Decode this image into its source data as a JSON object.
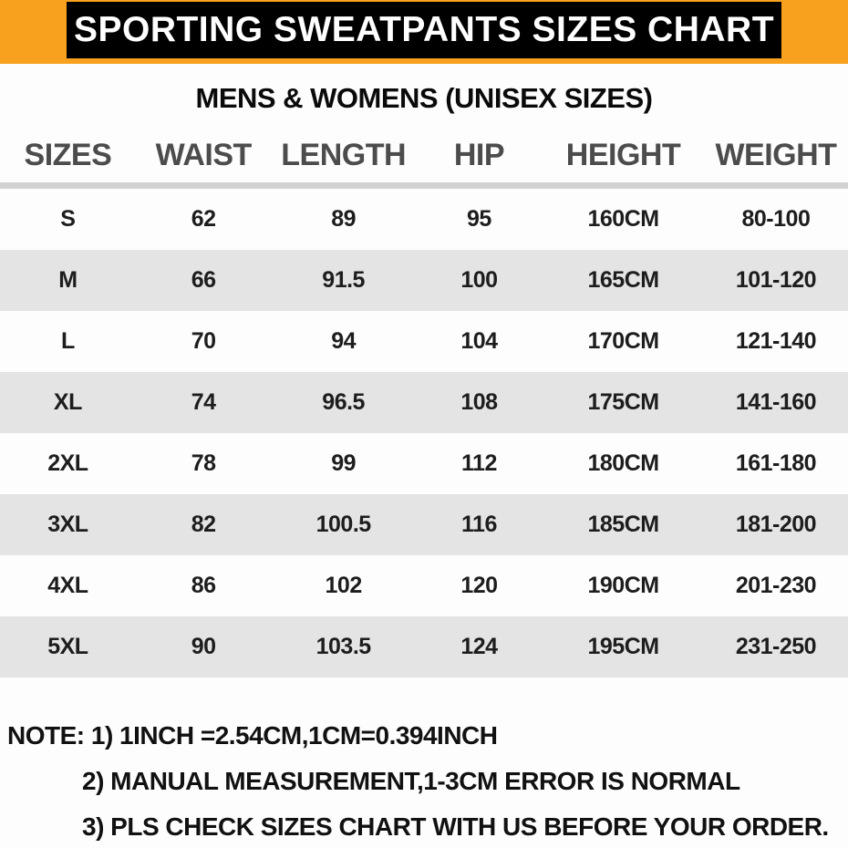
{
  "banner": {
    "title": "SPORTING SWEATPANTS SIZES CHART",
    "bg_color": "#000000",
    "text_color": "#ffffff"
  },
  "subtitle": "MENS & WOMENS (UNISEX SIZES)",
  "table": {
    "headers": [
      "SIZES",
      "WAIST",
      "LENGTH",
      "HIP",
      "HEIGHT",
      "WEIGHT"
    ],
    "rows": [
      [
        "S",
        "62",
        "89",
        "95",
        "160CM",
        "80-100"
      ],
      [
        "M",
        "66",
        "91.5",
        "100",
        "165CM",
        "101-120"
      ],
      [
        "L",
        "70",
        "94",
        "104",
        "170CM",
        "121-140"
      ],
      [
        "XL",
        "74",
        "96.5",
        "108",
        "175CM",
        "141-160"
      ],
      [
        "2XL",
        "78",
        "99",
        "112",
        "180CM",
        "161-180"
      ],
      [
        "3XL",
        "82",
        "100.5",
        "116",
        "185CM",
        "181-200"
      ],
      [
        "4XL",
        "86",
        "102",
        "120",
        "190CM",
        "201-230"
      ],
      [
        "5XL",
        "90",
        "103.5",
        "124",
        "195CM",
        "231-250"
      ]
    ]
  },
  "notes": [
    "NOTE: 1) 1INCH =2.54CM,1CM=0.394INCH",
    "2) MANUAL MEASUREMENT,1-3CM ERROR IS NORMAL",
    "3) PLS CHECK SIZES CHART WITH US BEFORE YOUR ORDER."
  ],
  "colors": {
    "accent_orange": "#f7a11e",
    "row_alt_gray": "#e4e4e4",
    "header_text_gray": "#4c4c4c"
  },
  "chart_data": {
    "type": "table",
    "title": "SPORTING SWEATPANTS SIZES CHART",
    "subtitle": "MENS & WOMENS (UNISEX SIZES)",
    "columns": [
      "SIZES",
      "WAIST",
      "LENGTH",
      "HIP",
      "HEIGHT",
      "WEIGHT"
    ],
    "rows": [
      [
        "S",
        62,
        89,
        95,
        "160CM",
        "80-100"
      ],
      [
        "M",
        66,
        91.5,
        100,
        "165CM",
        "101-120"
      ],
      [
        "L",
        70,
        94,
        104,
        "170CM",
        "121-140"
      ],
      [
        "XL",
        74,
        96.5,
        108,
        "175CM",
        "141-160"
      ],
      [
        "2XL",
        78,
        99,
        112,
        "180CM",
        "161-180"
      ],
      [
        "3XL",
        82,
        100.5,
        116,
        "185CM",
        "181-200"
      ],
      [
        "4XL",
        86,
        102,
        120,
        "190CM",
        "201-230"
      ],
      [
        "5XL",
        90,
        103.5,
        124,
        "195CM",
        "231-250"
      ]
    ],
    "notes": [
      "NOTE: 1) 1INCH =2.54CM,1CM=0.394INCH",
      "2) MANUAL MEASUREMENT,1-3CM ERROR IS NORMAL",
      "3) PLS CHECK SIZES CHART WITH US BEFORE YOUR ORDER."
    ]
  }
}
